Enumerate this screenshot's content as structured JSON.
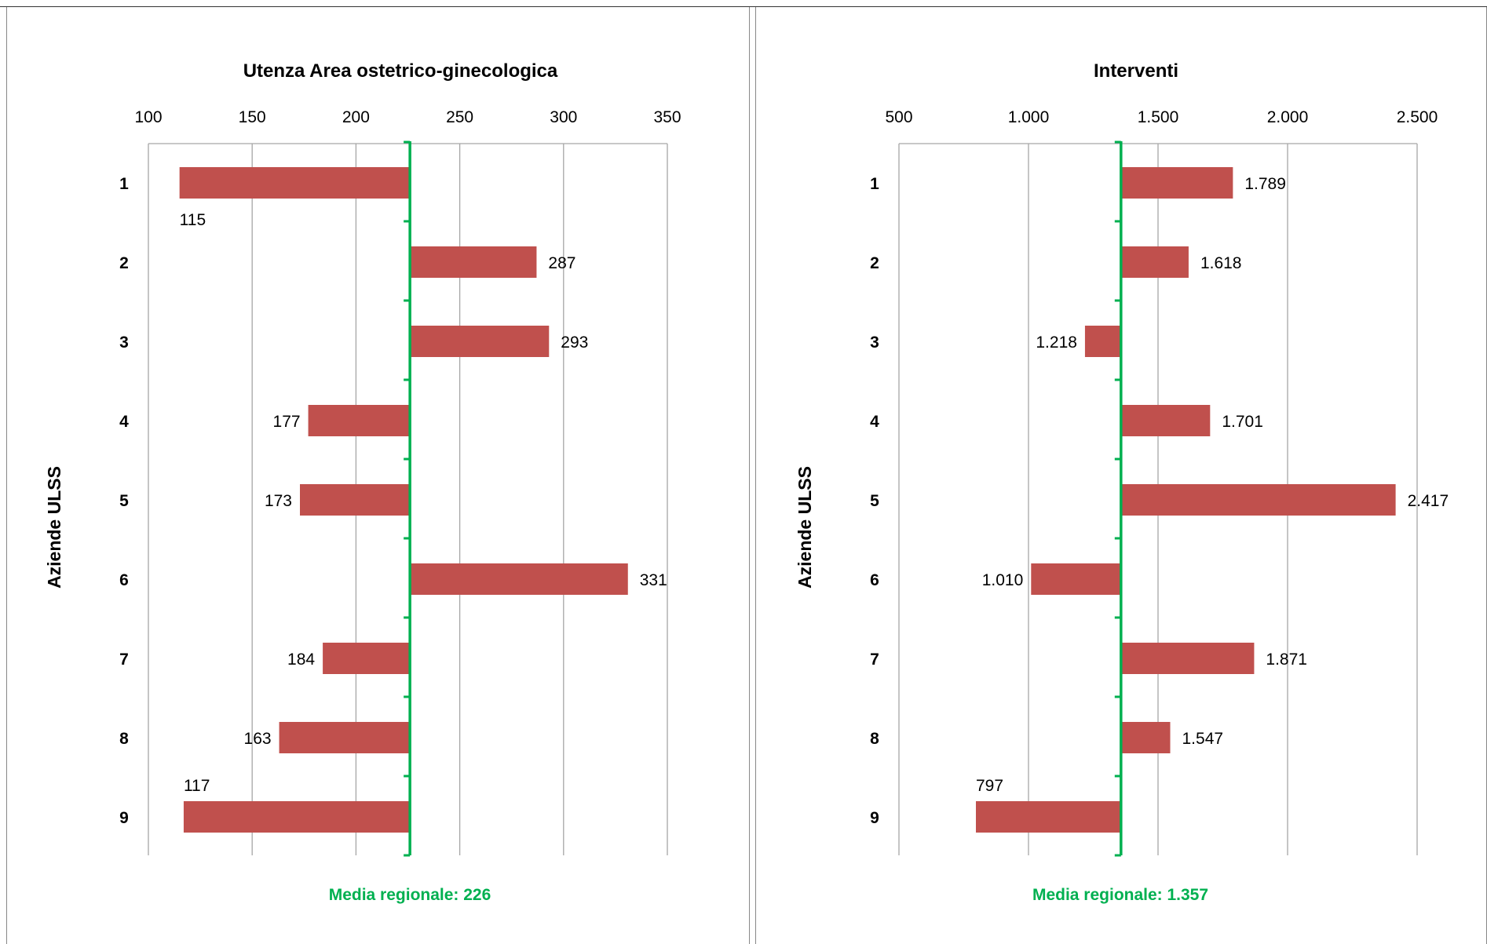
{
  "chart_data": [
    {
      "type": "bar",
      "orientation": "horizontal",
      "title": "Utenza Area ostetrico-ginecologica",
      "ylabel": "Aziende ULSS",
      "categories": [
        "1",
        "2",
        "3",
        "4",
        "5",
        "6",
        "7",
        "8",
        "9"
      ],
      "values": [
        115,
        287,
        293,
        177,
        173,
        331,
        184,
        163,
        117
      ],
      "value_labels": [
        "115",
        "287",
        "293",
        "177",
        "173",
        "331",
        "184",
        "163",
        "117"
      ],
      "xlim": [
        100,
        350
      ],
      "xticks": [
        100,
        150,
        200,
        250,
        300,
        350
      ],
      "xtick_labels": [
        "100",
        "150",
        "200",
        "250",
        "300",
        "350"
      ],
      "x_axis_position": "top",
      "baseline": 226,
      "reference_label": "Media regionale: 226",
      "grid": true,
      "bar_color": "#c0504d",
      "reference_color": "#00b050"
    },
    {
      "type": "bar",
      "orientation": "horizontal",
      "title": "Interventi",
      "ylabel": "Aziende ULSS",
      "categories": [
        "1",
        "2",
        "3",
        "4",
        "5",
        "6",
        "7",
        "8",
        "9"
      ],
      "values": [
        1789,
        1618,
        1218,
        1701,
        2417,
        1010,
        1871,
        1547,
        797
      ],
      "value_labels": [
        "1.789",
        "1.618",
        "1.218",
        "1.701",
        "2.417",
        "1.010",
        "1.871",
        "1.547",
        "797"
      ],
      "xlim": [
        500,
        2500
      ],
      "xticks": [
        500,
        1000,
        1500,
        2000,
        2500
      ],
      "xtick_labels": [
        "500",
        "1.000",
        "1.500",
        "2.000",
        "2.500"
      ],
      "x_axis_position": "top",
      "baseline": 1357,
      "reference_label": "Media regionale: 1.357",
      "grid": true,
      "bar_color": "#c0504d",
      "reference_color": "#00b050"
    }
  ]
}
